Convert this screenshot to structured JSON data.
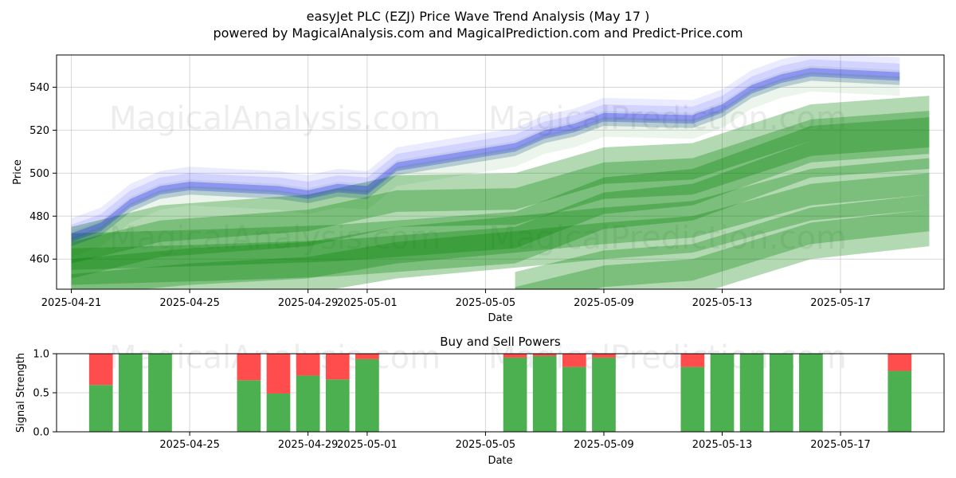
{
  "title_line1": "easyJet PLC (EZJ) Price Wave Trend Analysis (May 17 )",
  "title_line2": "powered by MagicalAnalysis.com and MagicalPrediction.com and Predict-Price.com",
  "watermarks": [
    "MagicalAnalysis.com",
    "MagicalPrediction.com"
  ],
  "colors": {
    "actual": "#0000ff",
    "prediction": "#008000",
    "buy": "#4caf50",
    "sell": "#ff4d4d",
    "grid": "#b0b0b0"
  },
  "chart_data": [
    {
      "type": "area",
      "title": "",
      "xlabel": "Date",
      "ylabel": "Price",
      "xlim": [
        "2025-04-20T12:00",
        "2025-05-20T12:00"
      ],
      "ylim": [
        446,
        555
      ],
      "x_ticks": [
        "2025-04-21",
        "2025-04-25",
        "2025-04-29",
        "2025-05-01",
        "2025-05-05",
        "2025-05-09",
        "2025-05-13",
        "2025-05-17"
      ],
      "y_ticks": [
        460,
        480,
        500,
        520,
        540
      ],
      "grid": true,
      "series": [
        {
          "kind": "actual-band",
          "x": [
            "2025-04-21",
            "2025-04-22",
            "2025-04-23",
            "2025-04-24",
            "2025-04-25",
            "2025-04-28",
            "2025-04-29",
            "2025-04-30",
            "2025-05-01",
            "2025-05-02",
            "2025-05-06",
            "2025-05-07",
            "2025-05-08",
            "2025-05-09",
            "2025-05-12",
            "2025-05-13",
            "2025-05-14",
            "2025-05-15",
            "2025-05-16",
            "2025-05-19"
          ],
          "values": [
            470,
            475,
            486,
            492,
            494,
            492,
            490,
            493,
            492,
            503,
            512,
            518,
            521,
            526,
            525,
            530,
            539,
            544,
            547,
            545
          ]
        },
        {
          "kind": "prediction-band",
          "x": [
            "2025-04-21",
            "2025-04-24",
            "2025-04-29",
            "2025-05-02",
            "2025-05-06",
            "2025-05-09",
            "2025-05-12",
            "2025-05-16",
            "2025-05-20"
          ],
          "values": [
            463,
            473,
            478,
            487,
            488,
            500,
            502,
            520,
            524
          ]
        },
        {
          "kind": "prediction-band",
          "x": [
            "2025-04-21",
            "2025-04-26",
            "2025-04-30",
            "2025-05-03",
            "2025-05-06",
            "2025-05-09",
            "2025-05-12",
            "2025-05-16",
            "2025-05-20"
          ],
          "values": [
            460,
            462,
            464,
            467,
            470,
            486,
            490,
            510,
            514
          ]
        },
        {
          "kind": "prediction-band",
          "x": [
            "2025-04-21",
            "2025-04-25",
            "2025-04-29",
            "2025-05-02",
            "2025-05-06",
            "2025-05-09",
            "2025-05-12",
            "2025-05-16",
            "2025-05-20"
          ],
          "values": [
            448,
            453,
            456,
            463,
            468,
            472,
            475,
            490,
            495
          ]
        },
        {
          "kind": "prediction-band",
          "x": [
            "2025-05-06",
            "2025-05-09",
            "2025-05-12",
            "2025-05-16",
            "2025-05-20"
          ],
          "values": [
            442,
            452,
            455,
            472,
            478
          ]
        }
      ]
    },
    {
      "type": "bar",
      "title": "Buy and Sell Powers",
      "xlabel": "Date",
      "ylabel": "Signal Strength",
      "xlim": [
        "2025-04-20T12:00",
        "2025-05-20T12:00"
      ],
      "ylim": [
        0,
        1
      ],
      "x_ticks": [
        "2025-04-25",
        "2025-04-29",
        "2025-05-01",
        "2025-05-05",
        "2025-05-09",
        "2025-05-13",
        "2025-05-17"
      ],
      "y_ticks": [
        "0.0",
        "0.5",
        "1.0"
      ],
      "grid": true,
      "x": [
        "2025-04-22",
        "2025-04-23",
        "2025-04-24",
        "2025-04-27",
        "2025-04-28",
        "2025-04-29",
        "2025-04-30",
        "2025-05-01",
        "2025-05-06",
        "2025-05-07",
        "2025-05-08",
        "2025-05-09",
        "2025-05-12",
        "2025-05-13",
        "2025-05-14",
        "2025-05-15",
        "2025-05-16",
        "2025-05-19"
      ],
      "series": [
        {
          "name": "Buy",
          "values": [
            0.6,
            1.0,
            1.0,
            0.66,
            0.49,
            0.72,
            0.67,
            0.93,
            0.95,
            0.97,
            0.83,
            0.95,
            0.83,
            1.0,
            1.0,
            1.0,
            1.0,
            0.78
          ]
        },
        {
          "name": "Sell",
          "values": [
            0.4,
            0.0,
            0.0,
            0.34,
            0.51,
            0.28,
            0.33,
            0.07,
            0.05,
            0.03,
            0.17,
            0.05,
            0.17,
            0.0,
            0.0,
            0.0,
            0.0,
            0.22
          ]
        }
      ]
    }
  ]
}
